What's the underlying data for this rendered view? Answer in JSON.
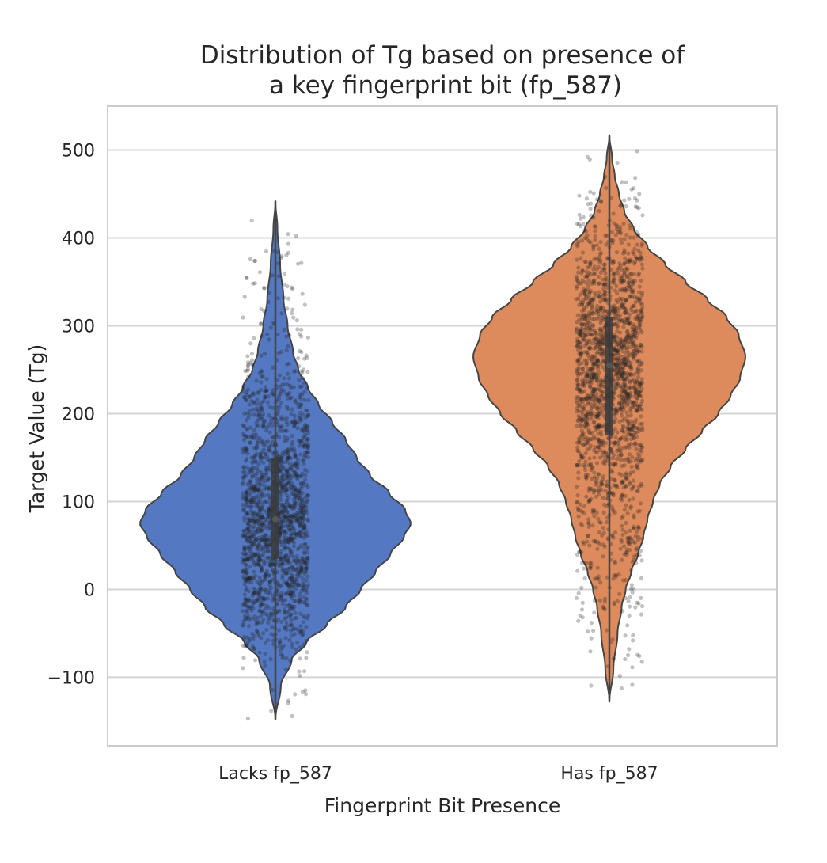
{
  "chart_data": {
    "type": "violin",
    "title_lines": [
      "Distribution of Tg based on presence of",
      "a key fingerprint bit (fp_587)"
    ],
    "xlabel": "Fingerprint Bit Presence",
    "ylabel": "Target Value (Tg)",
    "categories": [
      "Lacks fp_587",
      "Has fp_587"
    ],
    "ylim": [
      -178,
      550
    ],
    "yticks": [
      -100,
      0,
      100,
      200,
      300,
      400,
      500
    ],
    "ytick_labels": [
      "−100",
      "0",
      "100",
      "200",
      "300",
      "400",
      "500"
    ],
    "grid": true,
    "grid_axis": "y",
    "legend": "none",
    "overlay": "jittered strip of individual points (dark gray, semi-transparent)",
    "series": [
      {
        "category": "Lacks fp_587",
        "color": "#5478c1",
        "min": -148,
        "max": 442,
        "median": 80,
        "q1": 35,
        "q3": 150,
        "mode": 75,
        "points_range": [
          -148,
          442
        ],
        "profile": [
          [
            -148,
            0.0
          ],
          [
            -110,
            0.04
          ],
          [
            -80,
            0.12
          ],
          [
            -60,
            0.23
          ],
          [
            -40,
            0.38
          ],
          [
            -20,
            0.52
          ],
          [
            0,
            0.63
          ],
          [
            20,
            0.74
          ],
          [
            40,
            0.85
          ],
          [
            60,
            0.95
          ],
          [
            75,
            1.0
          ],
          [
            90,
            0.96
          ],
          [
            110,
            0.84
          ],
          [
            130,
            0.7
          ],
          [
            150,
            0.6
          ],
          [
            170,
            0.52
          ],
          [
            190,
            0.42
          ],
          [
            210,
            0.32
          ],
          [
            230,
            0.24
          ],
          [
            250,
            0.17
          ],
          [
            270,
            0.13
          ],
          [
            300,
            0.09
          ],
          [
            330,
            0.06
          ],
          [
            370,
            0.035
          ],
          [
            410,
            0.015
          ],
          [
            442,
            0.0
          ]
        ]
      },
      {
        "category": "Has fp_587",
        "color": "#dd8a5c",
        "min": -128,
        "max": 517,
        "median": 255,
        "q1": 175,
        "q3": 310,
        "mode": 265,
        "points_range": [
          -122,
          517
        ],
        "profile": [
          [
            -128,
            0.0
          ],
          [
            -90,
            0.03
          ],
          [
            -50,
            0.06
          ],
          [
            -20,
            0.09
          ],
          [
            0,
            0.12
          ],
          [
            20,
            0.16
          ],
          [
            40,
            0.21
          ],
          [
            60,
            0.25
          ],
          [
            80,
            0.28
          ],
          [
            100,
            0.32
          ],
          [
            120,
            0.37
          ],
          [
            140,
            0.45
          ],
          [
            160,
            0.56
          ],
          [
            180,
            0.68
          ],
          [
            200,
            0.8
          ],
          [
            220,
            0.89
          ],
          [
            240,
            0.96
          ],
          [
            265,
            1.0
          ],
          [
            290,
            0.95
          ],
          [
            310,
            0.86
          ],
          [
            330,
            0.72
          ],
          [
            350,
            0.56
          ],
          [
            370,
            0.41
          ],
          [
            390,
            0.28
          ],
          [
            410,
            0.18
          ],
          [
            430,
            0.11
          ],
          [
            450,
            0.07
          ],
          [
            470,
            0.04
          ],
          [
            490,
            0.02
          ],
          [
            517,
            0.0
          ]
        ]
      }
    ]
  },
  "colors": {
    "grid": "#d5d5d5",
    "frame": "#cccccc",
    "outline": "#454545",
    "points": "#202020"
  }
}
